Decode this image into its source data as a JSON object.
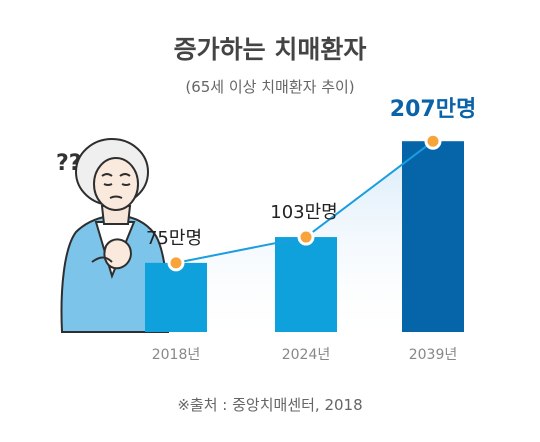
{
  "chart_data": {
    "type": "bar",
    "title": "증가하는 치매환자",
    "subtitle": "(65세 이상 치매환자 추이)",
    "categories": [
      "2018년",
      "2024년",
      "2039년"
    ],
    "values": [
      75,
      103,
      207
    ],
    "value_labels": [
      "75만명",
      "103만명",
      "207만명"
    ],
    "ylim": [
      0,
      230
    ],
    "grid": false,
    "legend": "none",
    "source": "※출처 : 중앙치매센터, 2018"
  },
  "colors": {
    "bar": "#0ea1dc",
    "bar_highlight": "#0565a8",
    "trend_line": "#1a9ee0",
    "marker_fill": "#f7a43b",
    "marker_stroke": "#ffffff",
    "area_fill": "#d8ebf8",
    "highlight_text": "#0a62a8"
  },
  "illustration": {
    "subject": "worried-elderly-woman",
    "glyph": "??"
  }
}
